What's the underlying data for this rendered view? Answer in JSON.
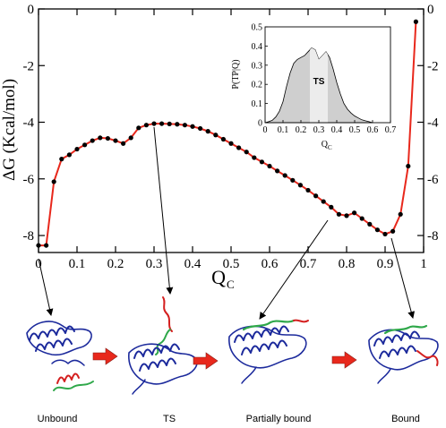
{
  "chart_data": [
    {
      "type": "line",
      "xlabel": "Q",
      "xlabel_sub": "C",
      "ylabel": "ΔG (Kcal/mol)",
      "xlim": [
        0,
        1
      ],
      "ylim": [
        -8.6,
        0
      ],
      "x_ticks": [
        "0",
        "0.1",
        "0.2",
        "0.3",
        "0.4",
        "0.5",
        "0.6",
        "0.7",
        "0.8",
        "0.9",
        "1"
      ],
      "y_ticks": [
        "0",
        "-2",
        "-4",
        "-6",
        "-8"
      ],
      "y_tick_values": [
        0,
        -2,
        -4,
        -6,
        -8
      ],
      "grid": false,
      "line_color": "#e8281c",
      "marker_color": "#000000",
      "x": [
        0.0,
        0.02,
        0.04,
        0.06,
        0.08,
        0.1,
        0.12,
        0.14,
        0.16,
        0.18,
        0.2,
        0.22,
        0.24,
        0.26,
        0.28,
        0.3,
        0.32,
        0.34,
        0.36,
        0.38,
        0.4,
        0.42,
        0.44,
        0.46,
        0.48,
        0.5,
        0.52,
        0.54,
        0.56,
        0.58,
        0.6,
        0.62,
        0.64,
        0.66,
        0.68,
        0.7,
        0.72,
        0.74,
        0.76,
        0.78,
        0.8,
        0.82,
        0.84,
        0.86,
        0.88,
        0.9,
        0.92,
        0.94,
        0.96,
        0.98
      ],
      "y": [
        -8.35,
        -8.35,
        -6.1,
        -5.3,
        -5.15,
        -4.95,
        -4.8,
        -4.65,
        -4.55,
        -4.57,
        -4.65,
        -4.75,
        -4.55,
        -4.2,
        -4.1,
        -4.05,
        -4.05,
        -4.06,
        -4.07,
        -4.1,
        -4.15,
        -4.22,
        -4.32,
        -4.45,
        -4.6,
        -4.75,
        -4.9,
        -5.05,
        -5.25,
        -5.4,
        -5.55,
        -5.72,
        -5.88,
        -6.05,
        -6.22,
        -6.4,
        -6.6,
        -6.8,
        -7.0,
        -7.25,
        -7.3,
        -7.2,
        -7.4,
        -7.6,
        -7.8,
        -7.95,
        -7.85,
        -7.25,
        -5.55,
        -0.45
      ]
    },
    {
      "type": "area",
      "xlabel": "Q",
      "xlabel_sub": "C",
      "ylabel": "P(TP|Q)",
      "xlim": [
        0,
        0.7
      ],
      "ylim": [
        0,
        0.5
      ],
      "x_ticks": [
        "0",
        "0.1",
        "0.2",
        "0.3",
        "0.4",
        "0.5",
        "0.6",
        "0.7"
      ],
      "y_ticks": [
        "0",
        "0.1",
        "0.2",
        "0.3",
        "0.4",
        "0.5"
      ],
      "y_tick_values": [
        0,
        0.1,
        0.2,
        0.3,
        0.4,
        0.5
      ],
      "fill_color": "#cfcfcf",
      "band_color": "#ececec",
      "ts_band": [
        0.25,
        0.35
      ],
      "ts_label": "TS",
      "x": [
        0.0,
        0.02,
        0.04,
        0.06,
        0.08,
        0.1,
        0.12,
        0.14,
        0.16,
        0.18,
        0.2,
        0.22,
        0.24,
        0.26,
        0.28,
        0.3,
        0.32,
        0.34,
        0.36,
        0.38,
        0.4,
        0.42,
        0.44,
        0.46,
        0.48,
        0.5,
        0.52,
        0.54,
        0.56,
        0.58,
        0.6
      ],
      "y": [
        0.0,
        0.005,
        0.012,
        0.03,
        0.06,
        0.11,
        0.19,
        0.26,
        0.31,
        0.33,
        0.34,
        0.35,
        0.37,
        0.39,
        0.38,
        0.33,
        0.35,
        0.37,
        0.34,
        0.28,
        0.21,
        0.15,
        0.1,
        0.07,
        0.05,
        0.035,
        0.025,
        0.015,
        0.01,
        0.005,
        0.0
      ]
    }
  ],
  "stages": [
    {
      "label": "Unbound",
      "points_to_q": 0.0
    },
    {
      "label": "TS",
      "points_to_q": 0.3
    },
    {
      "label": "Partially bound",
      "points_to_q": 0.75
    },
    {
      "label": "Bound",
      "points_to_q": 0.92
    }
  ],
  "colors": {
    "protein": "#1c2a9c",
    "peptide_a": "#2fa84a",
    "peptide_b": "#d41f1f",
    "arrow": "#e8281c"
  }
}
